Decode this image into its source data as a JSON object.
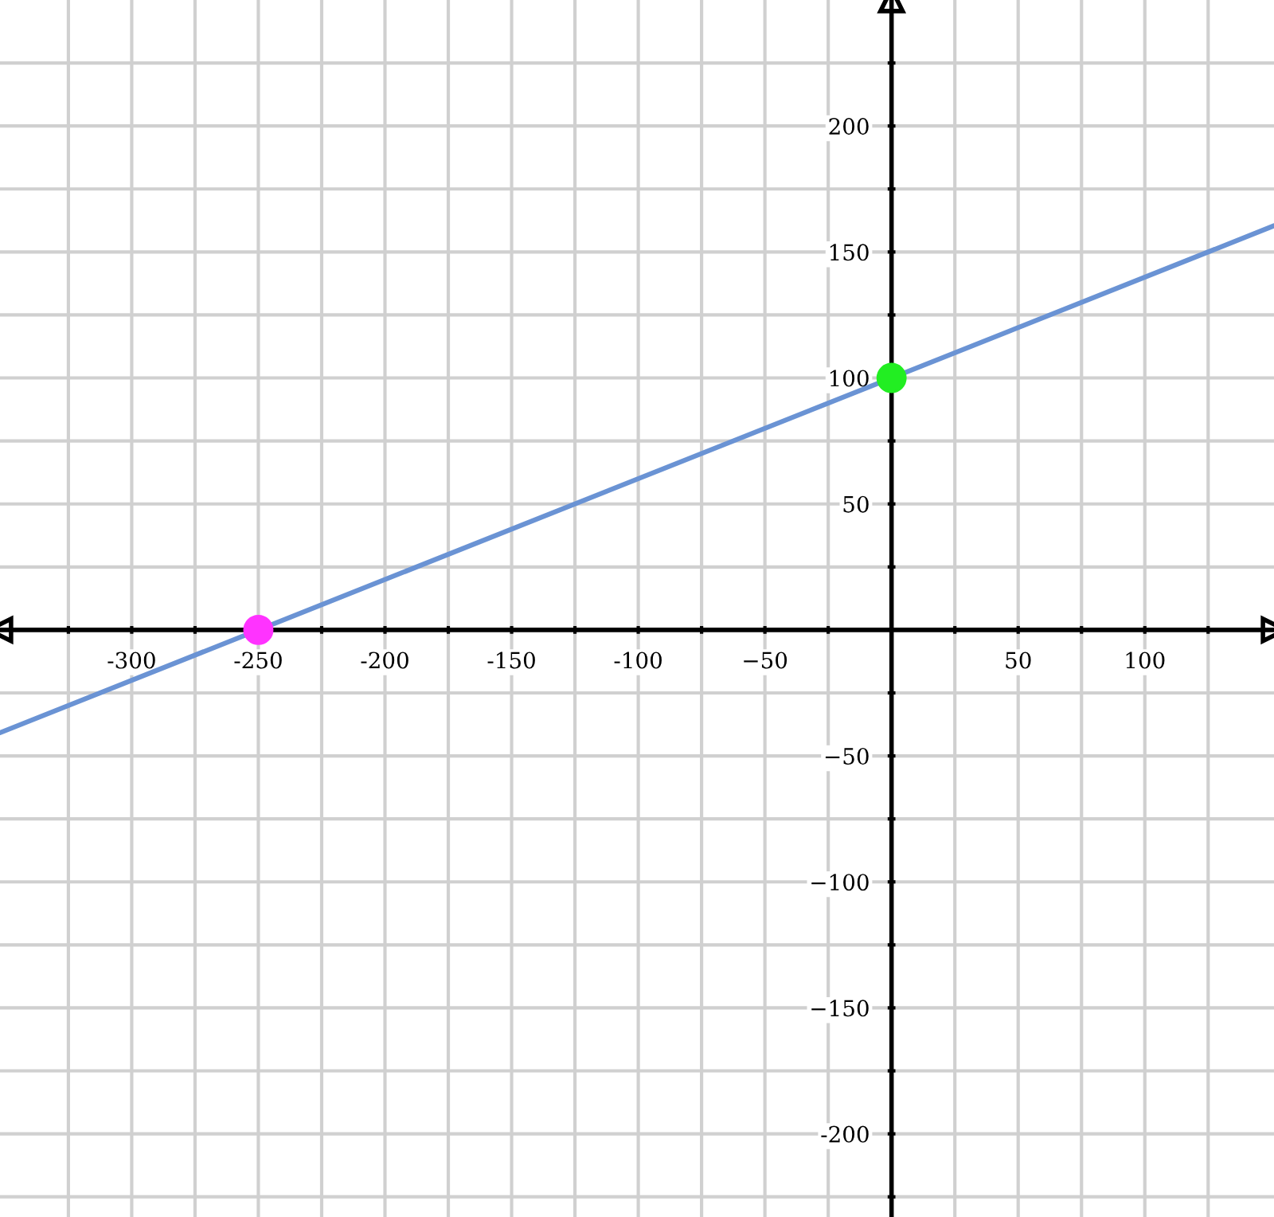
{
  "chart_data": {
    "type": "line",
    "series": [
      {
        "color": "#6a93d4",
        "x": [
          -352,
          151
        ],
        "values": [
          -40.8,
          160.4
        ]
      },
      {
        "type": "scatter",
        "color": "#ff33ff",
        "x": [
          -250
        ],
        "values": [
          0
        ]
      },
      {
        "type": "scatter",
        "color": "#22ee22",
        "x": [
          0
        ],
        "values": [
          100
        ]
      }
    ],
    "xlim": [
      -352,
      151
    ],
    "ylim": [
      -233,
      250
    ],
    "xticks": [
      {
        "value": -325,
        "label": null
      },
      -300,
      -250,
      -200,
      -150,
      -100,
      {
        "value": -50,
        "label": "−50"
      },
      {
        "value": 0,
        "label": null
      },
      50,
      100,
      {
        "value": -275,
        "label": null
      },
      {
        "value": -225,
        "label": null
      },
      {
        "value": -175,
        "label": null
      },
      {
        "value": -125,
        "label": null
      },
      {
        "value": -75,
        "label": null
      },
      {
        "value": -25,
        "label": null
      },
      {
        "value": 25,
        "label": null
      },
      {
        "value": 75,
        "label": null
      },
      {
        "value": 125,
        "label": null
      }
    ],
    "yticks": [
      -200,
      {
        "value": -150,
        "label": "−150"
      },
      {
        "value": -100,
        "label": "−100"
      },
      {
        "value": -50,
        "label": "−50"
      },
      {
        "value": 0,
        "label": null
      },
      50,
      100,
      150,
      200,
      {
        "value": -225,
        "label": null
      },
      {
        "value": -175,
        "label": null
      },
      {
        "value": -125,
        "label": null
      },
      {
        "value": -75,
        "label": null
      },
      {
        "value": -25,
        "label": null
      },
      {
        "value": 25,
        "label": null
      },
      {
        "value": 75,
        "label": null
      },
      {
        "value": 125,
        "label": null
      },
      {
        "value": 175,
        "label": null
      },
      {
        "value": 225,
        "label": null
      }
    ],
    "grid": true
  }
}
